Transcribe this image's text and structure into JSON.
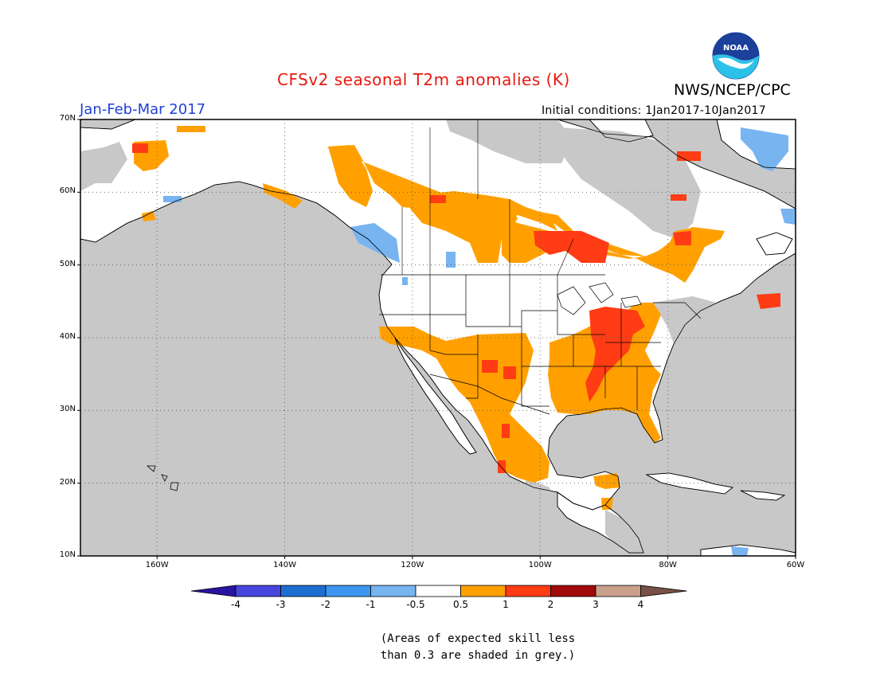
{
  "header": {
    "title": "CFSv2 seasonal T2m anomalies (K)",
    "agency": "NWS/NCEP/CPC",
    "logo_text": "NOAA",
    "period": "Jan-Feb-Mar 2017",
    "initial_conditions": "Initial conditions: 1Jan2017-10Jan2017"
  },
  "map": {
    "lon_range": [
      -172,
      -60
    ],
    "lat_range": [
      10,
      70
    ],
    "lat_labels": [
      "70N",
      "60N",
      "50N",
      "40N",
      "30N",
      "20N",
      "10N"
    ],
    "lat_values": [
      70,
      60,
      50,
      40,
      30,
      20,
      10
    ],
    "lon_labels": [
      "160W",
      "140W",
      "120W",
      "100W",
      "80W",
      "60W"
    ],
    "lon_values": [
      -160,
      -140,
      -120,
      -100,
      -80,
      -60
    ],
    "colors": {
      "no_skill": "#c8c8c8",
      "neutral": "#ffffff",
      "anom_0_5_to_1": "#ffa000",
      "anom_1_to_2": "#ff3c14",
      "anom_2_to_3": "#a00a0a",
      "anom_neg_0_5_to_1": "#78b4f0"
    }
  },
  "colorbar": {
    "labels": [
      "-4",
      "-3",
      "-2",
      "-1",
      "-0.5",
      "0.5",
      "1",
      "2",
      "3",
      "4"
    ],
    "colors": [
      "#2814a0",
      "#4646dc",
      "#1e6ed2",
      "#3c96f0",
      "#78b4f0",
      "#ffffff",
      "#ffa000",
      "#ff3c14",
      "#a00a0a",
      "#c8a08c",
      "#785046"
    ]
  },
  "note": {
    "line1": "(Areas of expected skill less",
    "line2": "than 0.3 are shaded in grey.)"
  }
}
